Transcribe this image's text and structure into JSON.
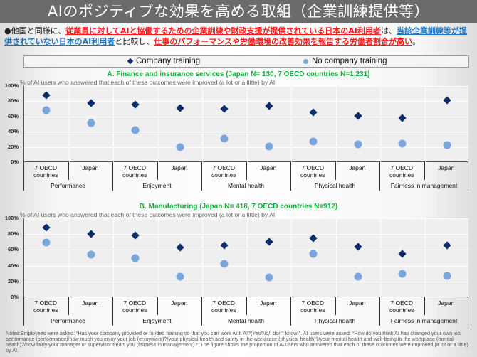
{
  "header": {
    "title": "AIのポジティブな効果を高める取組（企業訓練提供等）"
  },
  "summary": {
    "bullet": "●",
    "part1": "他国と同様に、",
    "part2_red": "従業員に対してAIと協働するための企業訓練や財政支援が提供されている日本のAI利用者",
    "part3": "は、",
    "part4_blue": "当該企業訓練等が提供されていない日本のAI利用者",
    "part5": "と比較し、",
    "part6_red": "仕事のパフォーマンスや労働環境の改善効果を報告する労働者割合が高い",
    "part7": "。"
  },
  "legend": {
    "company_training": "Company training",
    "no_company_training": "No company training"
  },
  "colors": {
    "company_training": "#0d2e6b",
    "no_company_training": "#7aa6dc",
    "chart_title": "#1aae3a",
    "highlight_red": "#ff1a1a",
    "highlight_blue": "#1a73c7",
    "title_bar": "#6b6b6b"
  },
  "yticks": [
    "100%",
    "80%",
    "60%",
    "40%",
    "20%",
    "0%"
  ],
  "xlabels": [
    "7 OECD countries",
    "Japan",
    "7 OECD countries",
    "Japan",
    "7 OECD countries",
    "Japan",
    "7 OECD countries",
    "Japan",
    "7 OECD countries",
    "Japan"
  ],
  "xlabel_line1": [
    "7 OECD",
    "Japan",
    "7 OECD",
    "Japan",
    "7 OECD",
    "Japan",
    "7 OECD",
    "Japan",
    "7 OECD",
    "Japan"
  ],
  "xlabel_line2": [
    "countries",
    "",
    "countries",
    "",
    "countries",
    "",
    "countries",
    "",
    "countries",
    ""
  ],
  "groups": [
    "Performance",
    "Enjoyment",
    "Mental health",
    "Physical health",
    "Fairness in management"
  ],
  "chart_a": {
    "title": "A. Finance and insurance services (Japan N= 130,  7 OECD countries N=1,231)",
    "subtitle": "% of AI users who answered that each of these outcomes were improved (a lot or a little) by AI"
  },
  "chart_b": {
    "title": "B. Manufacturing (Japan N= 418,  7 OECD countries N=912)",
    "subtitle": "% of AI users who answered that each of these outcomes were improved (a lot or a little) by AI"
  },
  "notes": "Notes:Employees were asked: “Has your company provided or funded training so that you can work with AI?(Yes/No/I don't know)”. AI users were asked: “How do you think AI has changed your own job performance (performance)/how much you enjoy your job (enjoyment)?/your physical health and safety in the workplace (physical health)?/your mental health and well-being in the workplace (mental health)?/how fairly your manager or supervisor treats you (fairness in management)?” The figure shows the proportion of AI users who answered that each of these outcomes were improved (a lot or a little) by AI.",
  "chart_data": [
    {
      "type": "scatter",
      "title": "A. Finance and insurance services (Japan N= 130,  7 OECD countries N=1,231)",
      "ylabel": "% of AI users who answered that each of these outcomes were improved (a lot or a little) by AI",
      "xlabel": "",
      "ylim": [
        0,
        100
      ],
      "yticks": [
        0,
        20,
        40,
        60,
        80,
        100
      ],
      "grid": true,
      "legend_position": "top",
      "groups": [
        "Performance",
        "Enjoyment",
        "Mental health",
        "Physical health",
        "Fairness in management"
      ],
      "categories": [
        "Performance - 7 OECD countries",
        "Performance - Japan",
        "Enjoyment - 7 OECD countries",
        "Enjoyment - Japan",
        "Mental health - 7 OECD countries",
        "Mental health - Japan",
        "Physical health - 7 OECD countries",
        "Physical health - Japan",
        "Fairness in management - 7 OECD countries",
        "Fairness in management - Japan"
      ],
      "series": [
        {
          "name": "Company training",
          "marker": "diamond",
          "values": [
            88,
            78,
            76,
            71,
            70,
            74,
            65,
            61,
            58,
            81
          ]
        },
        {
          "name": "No company training",
          "marker": "circle",
          "values": [
            68,
            51,
            42,
            20,
            31,
            21,
            27,
            23,
            24,
            22
          ]
        }
      ]
    },
    {
      "type": "scatter",
      "title": "B. Manufacturing (Japan N= 418,  7 OECD countries N=912)",
      "ylabel": "% of AI users who answered that each of these outcomes were improved (a lot or a little) by AI",
      "xlabel": "",
      "ylim": [
        0,
        100
      ],
      "yticks": [
        0,
        20,
        40,
        60,
        80,
        100
      ],
      "grid": true,
      "legend_position": "top",
      "groups": [
        "Performance",
        "Enjoyment",
        "Mental health",
        "Physical health",
        "Fairness in management"
      ],
      "categories": [
        "Performance - 7 OECD countries",
        "Performance - Japan",
        "Enjoyment - 7 OECD countries",
        "Enjoyment - Japan",
        "Mental health - 7 OECD countries",
        "Mental health - Japan",
        "Physical health - 7 OECD countries",
        "Physical health - Japan",
        "Fairness in management - 7 OECD countries",
        "Fairness in management - Japan"
      ],
      "series": [
        {
          "name": "Company training",
          "marker": "diamond",
          "values": [
            88,
            80,
            78,
            63,
            66,
            70,
            75,
            64,
            55,
            66
          ]
        },
        {
          "name": "No company training",
          "marker": "circle",
          "values": [
            69,
            54,
            50,
            26,
            42,
            25,
            55,
            26,
            30,
            27
          ]
        }
      ]
    }
  ]
}
